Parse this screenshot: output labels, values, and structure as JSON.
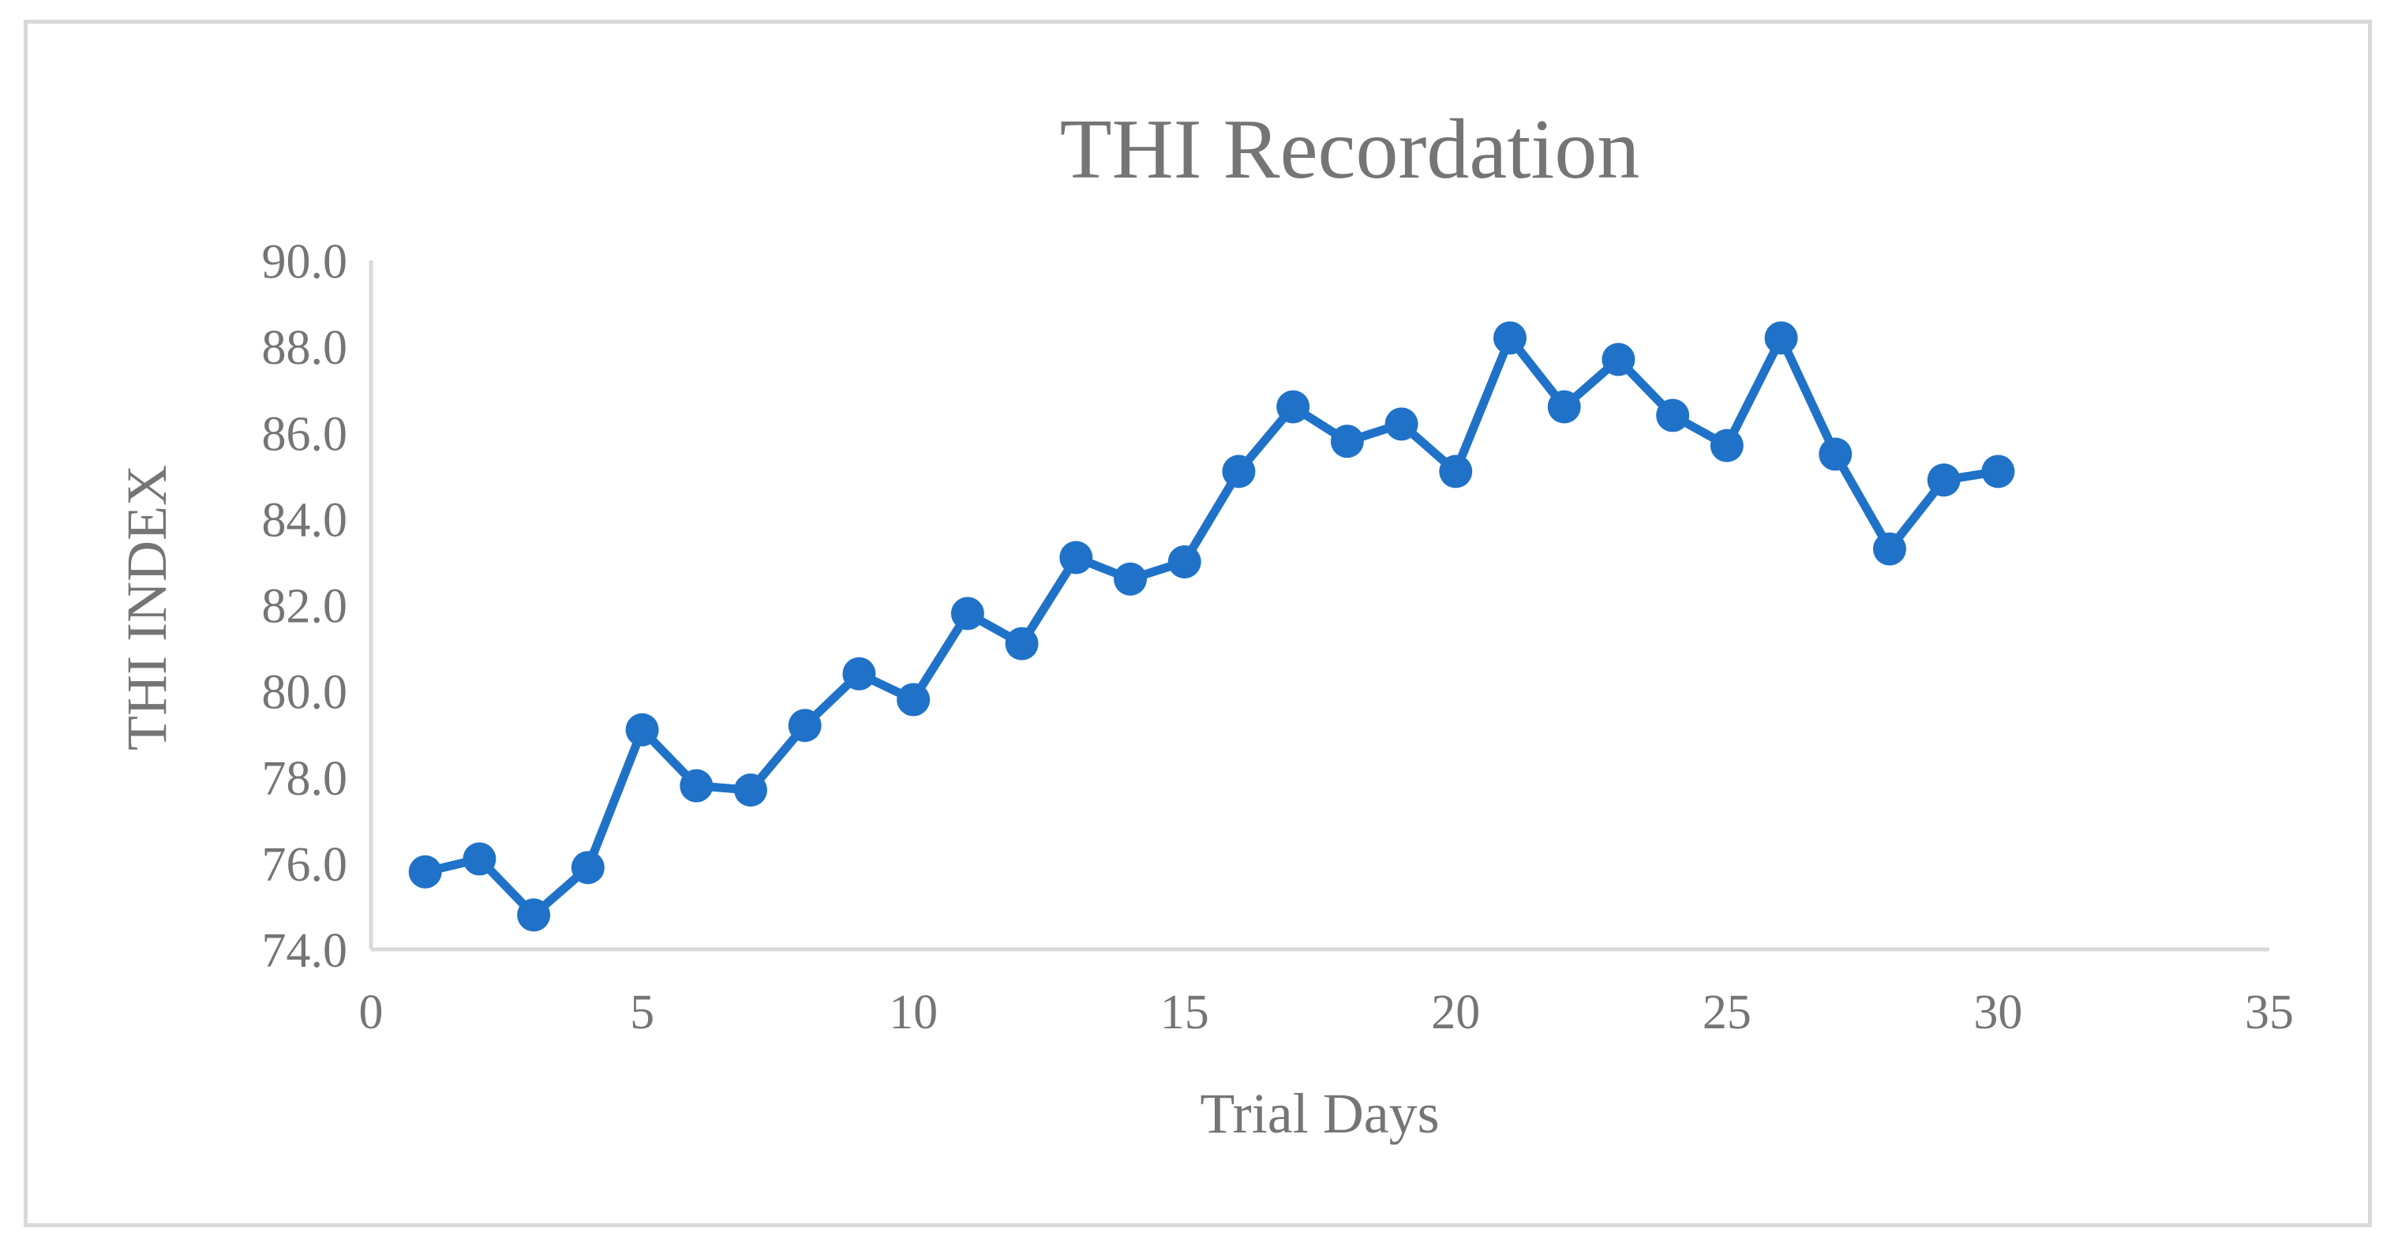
{
  "chart_data": {
    "type": "line",
    "title": "THI  Recordation",
    "xlabel": "Trial Days",
    "ylabel": "THI  INDEX",
    "xlim": [
      0,
      35
    ],
    "ylim": [
      74.0,
      90.0
    ],
    "x_ticks": [
      "0",
      "5",
      "10",
      "15",
      "20",
      "25",
      "30",
      "35"
    ],
    "y_ticks": [
      "74.0",
      "76.0",
      "78.0",
      "80.0",
      "82.0",
      "84.0",
      "86.0",
      "88.0",
      "90.0"
    ],
    "grid": false,
    "legend": "none",
    "series": [
      {
        "color": "#1f72c8",
        "x": [
          1,
          2,
          3,
          4,
          5,
          6,
          7,
          8,
          9,
          10,
          11,
          12,
          13,
          14,
          15,
          16,
          17,
          18,
          19,
          20,
          21,
          22,
          23,
          24,
          25,
          26,
          27,
          28,
          29,
          30
        ],
        "y": [
          75.8,
          76.1,
          74.8,
          75.9,
          79.1,
          77.8,
          77.7,
          79.2,
          80.4,
          79.8,
          81.8,
          81.1,
          83.1,
          82.6,
          83.0,
          85.1,
          86.6,
          85.8,
          86.2,
          85.1,
          88.2,
          86.6,
          87.7,
          86.4,
          85.7,
          88.2,
          85.5,
          83.3,
          84.9,
          85.1
        ]
      }
    ],
    "axis_color": "#d9d9d9"
  }
}
